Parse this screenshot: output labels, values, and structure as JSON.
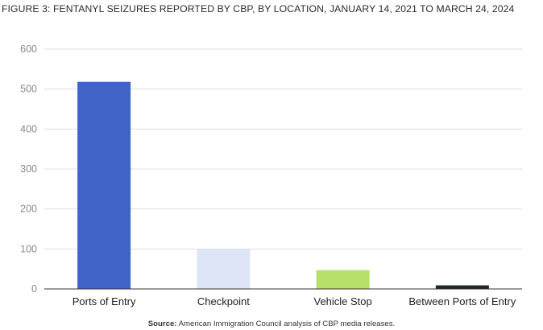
{
  "figure_title": "FIGURE 3: FENTANYL SEIZURES REPORTED BY CBP, BY LOCATION, JANUARY 14, 2021 TO MARCH 24, 2024",
  "source": {
    "label": "Source:",
    "text": " American Immigration Council analysis of CBP media releases."
  },
  "chart_data": {
    "type": "bar",
    "title": "FIGURE 3: FENTANYL SEIZURES REPORTED BY CBP, BY LOCATION, JANUARY 14, 2021 TO MARCH 24, 2024",
    "categories": [
      "Ports of Entry",
      "Checkpoint",
      "Vehicle Stop",
      "Between Ports of Entry"
    ],
    "values": [
      518,
      100,
      47,
      9
    ],
    "colors": [
      "#3f63c7",
      "#dde5f6",
      "#b6e06a",
      "#1d2b23"
    ],
    "xlabel": "",
    "ylabel": "",
    "ylim": [
      0,
      600
    ],
    "yticks": [
      0,
      100,
      200,
      300,
      400,
      500,
      600
    ],
    "grid": true
  }
}
